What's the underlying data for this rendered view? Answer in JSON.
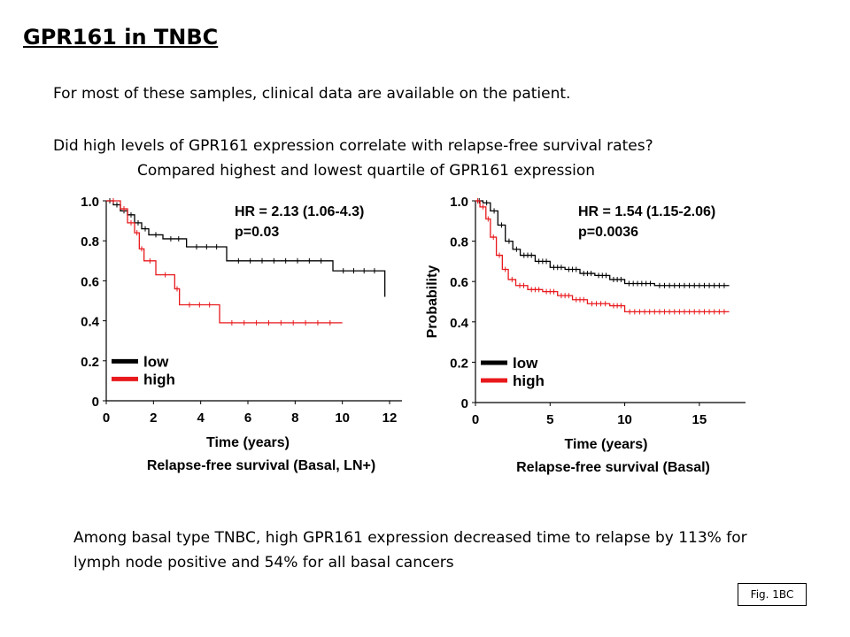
{
  "slide": {
    "title": "GPR161 in TNBC",
    "line1": "For most of these samples, clinical data are available on the patient.",
    "line2": "Did high levels of GPR161 expression correlate with relapse-free survival rates?",
    "line3": "Compared highest and lowest quartile of GPR161 expression",
    "summary": "Among basal type TNBC, high GPR161 expression decreased time to relapse by 113% for lymph node positive and 54% for all basal cancers",
    "fig_ref": "Fig. 1BC"
  },
  "colors": {
    "low": "#000000",
    "high": "#e8191c"
  },
  "chart_data": [
    {
      "type": "line",
      "step": true,
      "title": "Relapse-free survival (Basal, LN+)",
      "xlabel": "Time (years)",
      "ylabel": "",
      "xlim": [
        0,
        12
      ],
      "ylim": [
        0,
        1.0
      ],
      "xticks": [
        "0",
        "2",
        "4",
        "6",
        "8",
        "10",
        "12"
      ],
      "yticks": [
        "0",
        "0.2",
        "0.4",
        "0.6",
        "0.8",
        "1.0"
      ],
      "stat_hr": "HR = 2.13 (1.06-4.3)",
      "stat_p": "p=0.03",
      "legend": [
        "low",
        "high"
      ],
      "series": [
        {
          "name": "low",
          "x": [
            0,
            0.3,
            0.6,
            0.9,
            1.2,
            1.5,
            1.8,
            2.4,
            3.4,
            5.1,
            9.6,
            11.8
          ],
          "y": [
            1.0,
            0.98,
            0.95,
            0.93,
            0.89,
            0.86,
            0.83,
            0.81,
            0.77,
            0.7,
            0.65,
            0.52
          ]
        },
        {
          "name": "high",
          "x": [
            0,
            0.6,
            0.9,
            1.2,
            1.4,
            1.6,
            2.1,
            2.9,
            3.1,
            4.8,
            10.0
          ],
          "y": [
            1.0,
            0.96,
            0.89,
            0.84,
            0.76,
            0.7,
            0.63,
            0.56,
            0.48,
            0.39,
            0.39
          ]
        }
      ]
    },
    {
      "type": "line",
      "step": true,
      "title": "Relapse-free survival (Basal)",
      "xlabel": "Time (years)",
      "ylabel": "Probability",
      "xlim": [
        0,
        17.5
      ],
      "ylim": [
        0,
        1.0
      ],
      "xticks": [
        "0",
        "5",
        "10",
        "15"
      ],
      "yticks": [
        "0",
        "0.2",
        "0.4",
        "0.6",
        "0.8",
        "1.0"
      ],
      "stat_hr": "HR = 1.54 (1.15-2.06)",
      "stat_p": "p=0.0036",
      "legend": [
        "low",
        "high"
      ],
      "series": [
        {
          "name": "low",
          "x": [
            0,
            0.5,
            1.0,
            1.5,
            2.0,
            2.5,
            3.0,
            4.0,
            5.0,
            6.0,
            7.0,
            8.0,
            9.0,
            10.0,
            12.0,
            17.0
          ],
          "y": [
            1.0,
            0.99,
            0.95,
            0.88,
            0.8,
            0.76,
            0.73,
            0.7,
            0.67,
            0.66,
            0.64,
            0.63,
            0.61,
            0.59,
            0.58,
            0.58
          ]
        },
        {
          "name": "high",
          "x": [
            0,
            0.3,
            0.7,
            1.0,
            1.4,
            1.8,
            2.2,
            2.7,
            3.5,
            4.5,
            5.5,
            6.5,
            7.5,
            9.0,
            10.0,
            17.0
          ],
          "y": [
            1.0,
            0.97,
            0.91,
            0.82,
            0.73,
            0.66,
            0.61,
            0.58,
            0.56,
            0.55,
            0.53,
            0.51,
            0.49,
            0.48,
            0.45,
            0.45
          ]
        }
      ]
    }
  ]
}
